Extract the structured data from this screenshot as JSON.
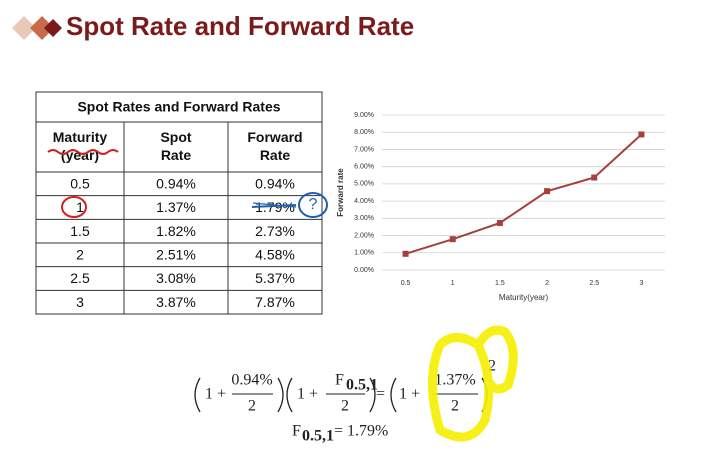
{
  "header": {
    "title": "Spot Rate and Forward Rate"
  },
  "table": {
    "title": "Spot Rates and Forward Rates",
    "columns": [
      "Maturity (year)",
      "Spot Rate",
      "Forward Rate"
    ],
    "rows": [
      [
        "0.5",
        "0.94%",
        "0.94%"
      ],
      [
        "1",
        "1.37%",
        "1.79%"
      ],
      [
        "1.5",
        "1.82%",
        "2.73%"
      ],
      [
        "2",
        "2.51%",
        "4.58%"
      ],
      [
        "2.5",
        "3.08%",
        "5.37%"
      ],
      [
        "3",
        "3.87%",
        "7.87%"
      ]
    ]
  },
  "annotation": "?",
  "chart_data": {
    "type": "line",
    "categories": [
      "0.5",
      "1",
      "1.5",
      "2",
      "2.5",
      "3"
    ],
    "series": [
      {
        "color": "#a5403b",
        "values": [
          0.94,
          1.79,
          2.73,
          4.58,
          5.37,
          7.87
        ]
      }
    ],
    "ylim": [
      0,
      9
    ],
    "yticks": [
      {
        "value": 0,
        "label": "0.00%"
      },
      {
        "value": 1,
        "label": "1.00%"
      },
      {
        "value": 2,
        "label": "2.00%"
      },
      {
        "value": 3,
        "label": "3.00%"
      },
      {
        "value": 4,
        "label": "4.00%"
      },
      {
        "value": 5,
        "label": "5.00%"
      },
      {
        "value": 6,
        "label": "6.00%"
      },
      {
        "value": 7,
        "label": "7.00%"
      },
      {
        "value": 8,
        "label": "8.00%"
      },
      {
        "value": 9,
        "label": "9.00%"
      }
    ],
    "grid": true,
    "xlabel": "Maturity(year)",
    "ylabel": "Forward rate"
  },
  "formula": {
    "terms": [
      "1 +",
      "0.94%",
      "2",
      "1 +",
      "F",
      "0.5,1",
      "2",
      "=",
      "1 +",
      "1.37%",
      "2",
      "2"
    ],
    "result": [
      "F",
      "0.5,1",
      "= 1.79%"
    ]
  }
}
